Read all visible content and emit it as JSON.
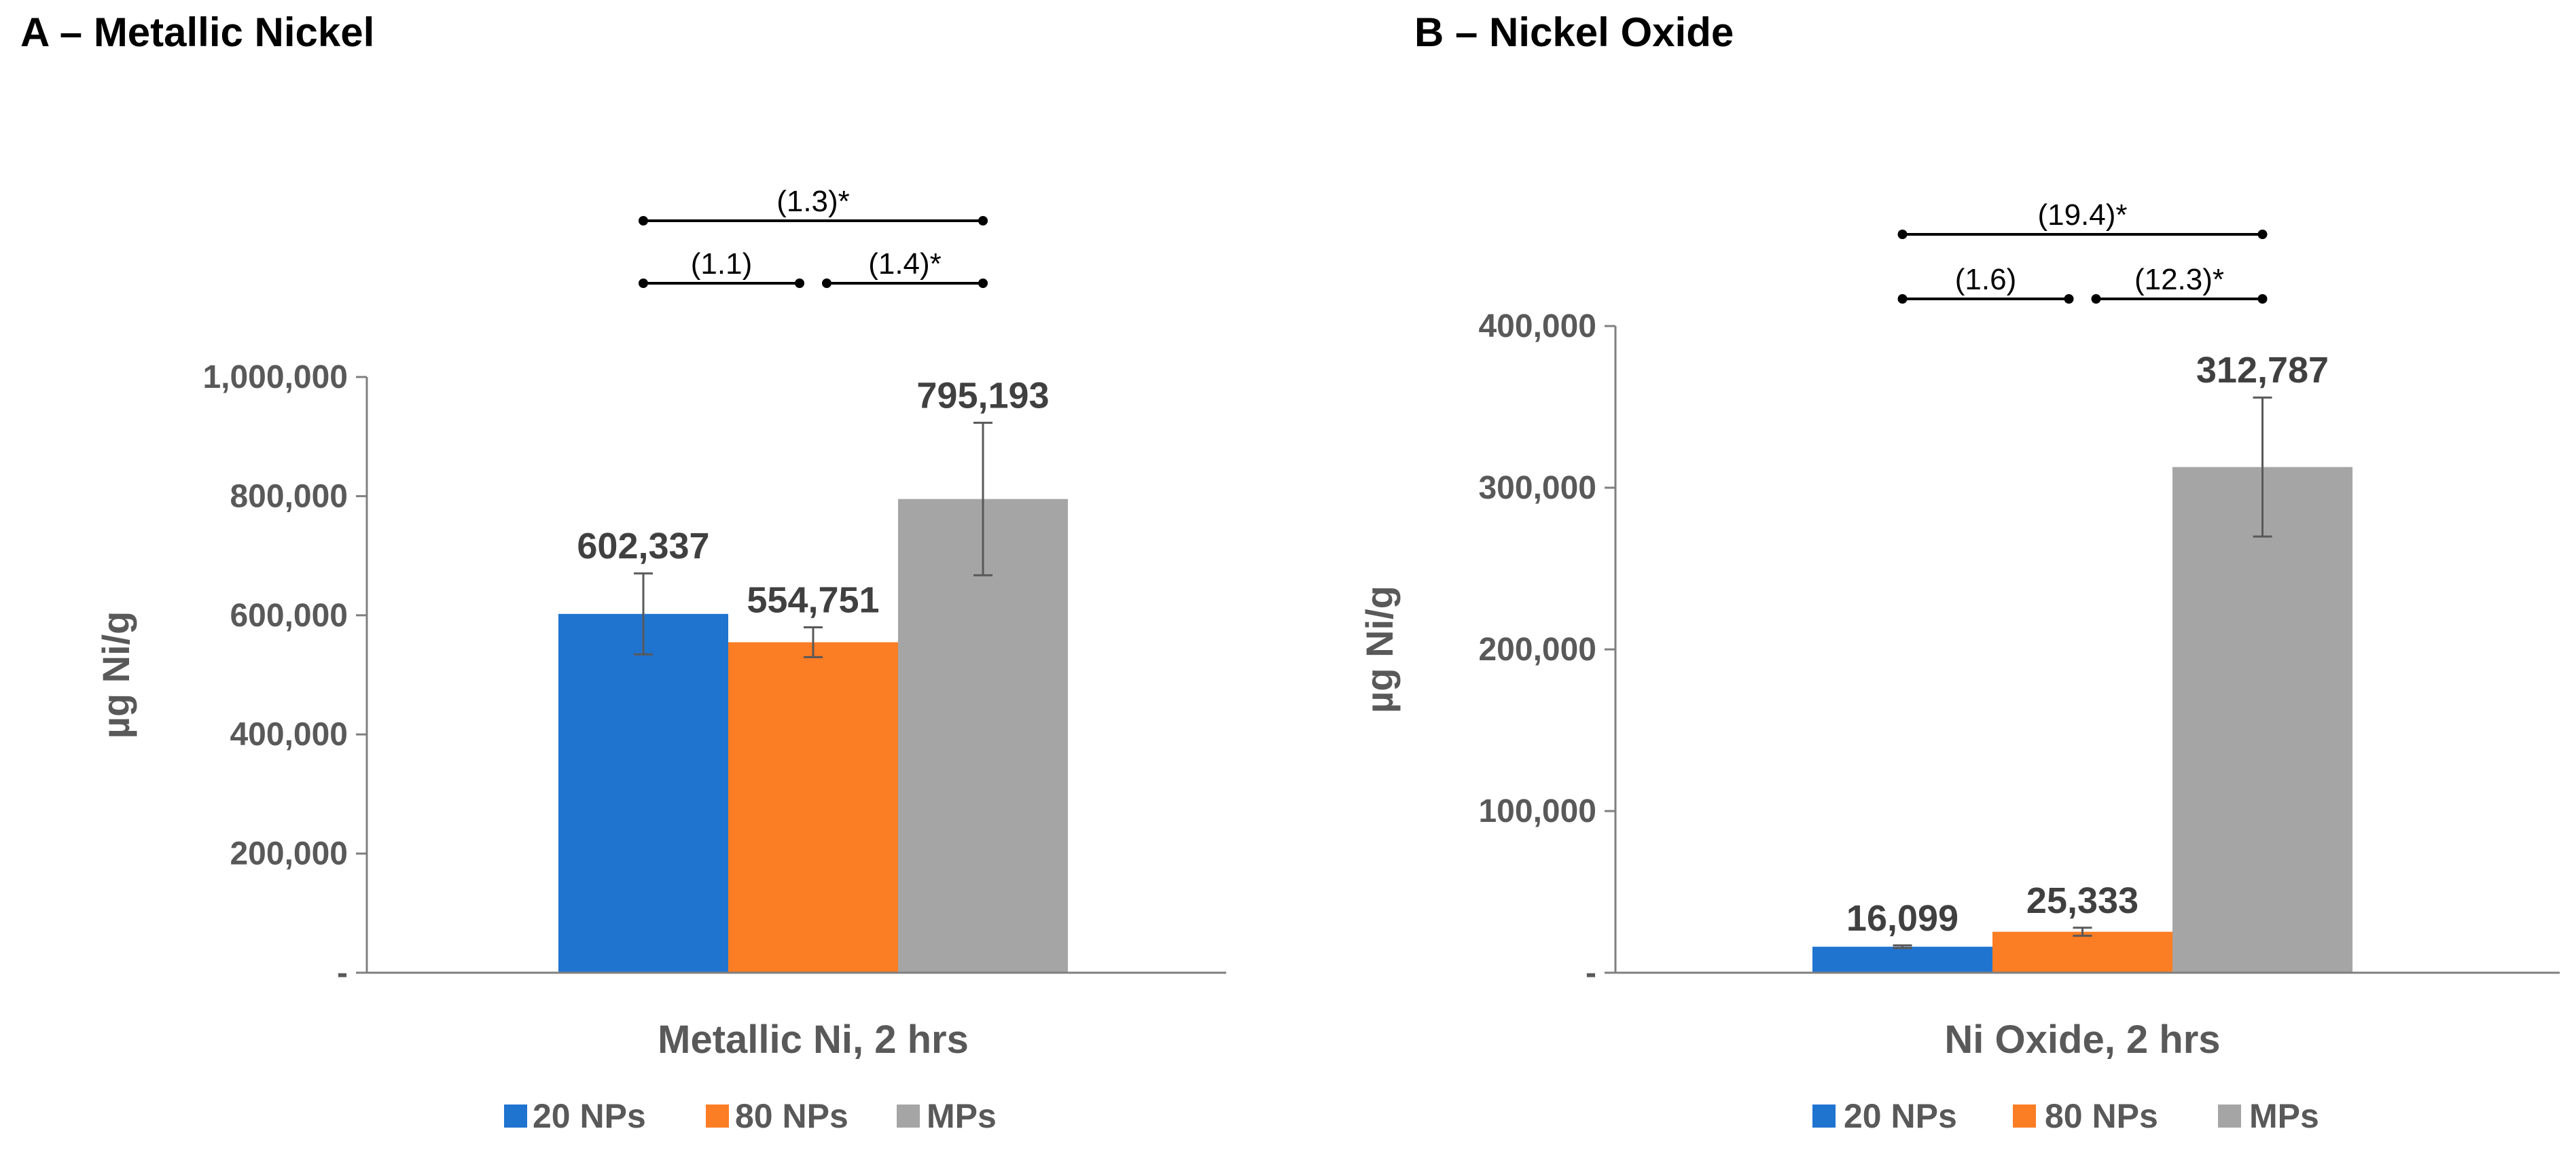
{
  "chart_data": [
    {
      "panel_title": "A – Metallic Nickel",
      "type": "bar",
      "categories": [
        "Metallic Ni, 2 hrs"
      ],
      "series": [
        {
          "name": "20 NPs",
          "values": [
            602337
          ],
          "error": [
            68000
          ],
          "value_label": "602,337",
          "color": "#1f74d0"
        },
        {
          "name": "80 NPs",
          "values": [
            554751
          ],
          "error": [
            25000
          ],
          "value_label": "554,751",
          "color": "#fb7d24"
        },
        {
          "name": "MPs",
          "values": [
            795193
          ],
          "error": [
            128000
          ],
          "value_label": "795,193",
          "color": "#a5a5a5"
        }
      ],
      "ylabel": "µg Ni/g",
      "ylim": [
        0,
        1000000
      ],
      "yticks": [
        0,
        200000,
        400000,
        600000,
        800000,
        1000000
      ],
      "ytick_labels": [
        "-",
        "200,000",
        "400,000",
        "600,000",
        "800,000",
        "1,000,000"
      ],
      "significance": [
        {
          "from": 0,
          "to": 1,
          "label": "(1.1)",
          "level": 0
        },
        {
          "from": 1,
          "to": 2,
          "label": "(1.4)*",
          "level": 0
        },
        {
          "from": 0,
          "to": 2,
          "label": "(1.3)*",
          "level": 1
        }
      ],
      "legend": [
        "20 NPs",
        "80 NPs",
        "MPs"
      ]
    },
    {
      "panel_title": "B – Nickel Oxide",
      "type": "bar",
      "categories": [
        "Ni Oxide, 2 hrs"
      ],
      "series": [
        {
          "name": "20 NPs",
          "values": [
            16099
          ],
          "error": [
            800
          ],
          "value_label": "16,099",
          "color": "#1f74d0"
        },
        {
          "name": "80 NPs",
          "values": [
            25333
          ],
          "error": [
            2500
          ],
          "value_label": "25,333",
          "color": "#fb7d24"
        },
        {
          "name": "MPs",
          "values": [
            312787
          ],
          "error": [
            43000
          ],
          "value_label": "312,787",
          "color": "#a5a5a5"
        }
      ],
      "ylabel": "µg Ni/g",
      "ylim": [
        0,
        400000
      ],
      "yticks": [
        0,
        100000,
        200000,
        300000,
        400000
      ],
      "ytick_labels": [
        "-",
        "100,000",
        "200,000",
        "300,000",
        "400,000"
      ],
      "significance": [
        {
          "from": 0,
          "to": 1,
          "label": "(1.6)",
          "level": 0
        },
        {
          "from": 1,
          "to": 2,
          "label": "(12.3)*",
          "level": 0
        },
        {
          "from": 0,
          "to": 2,
          "label": "(19.4)*",
          "level": 1
        }
      ],
      "legend": [
        "20 NPs",
        "80 NPs",
        "MPs"
      ]
    }
  ]
}
